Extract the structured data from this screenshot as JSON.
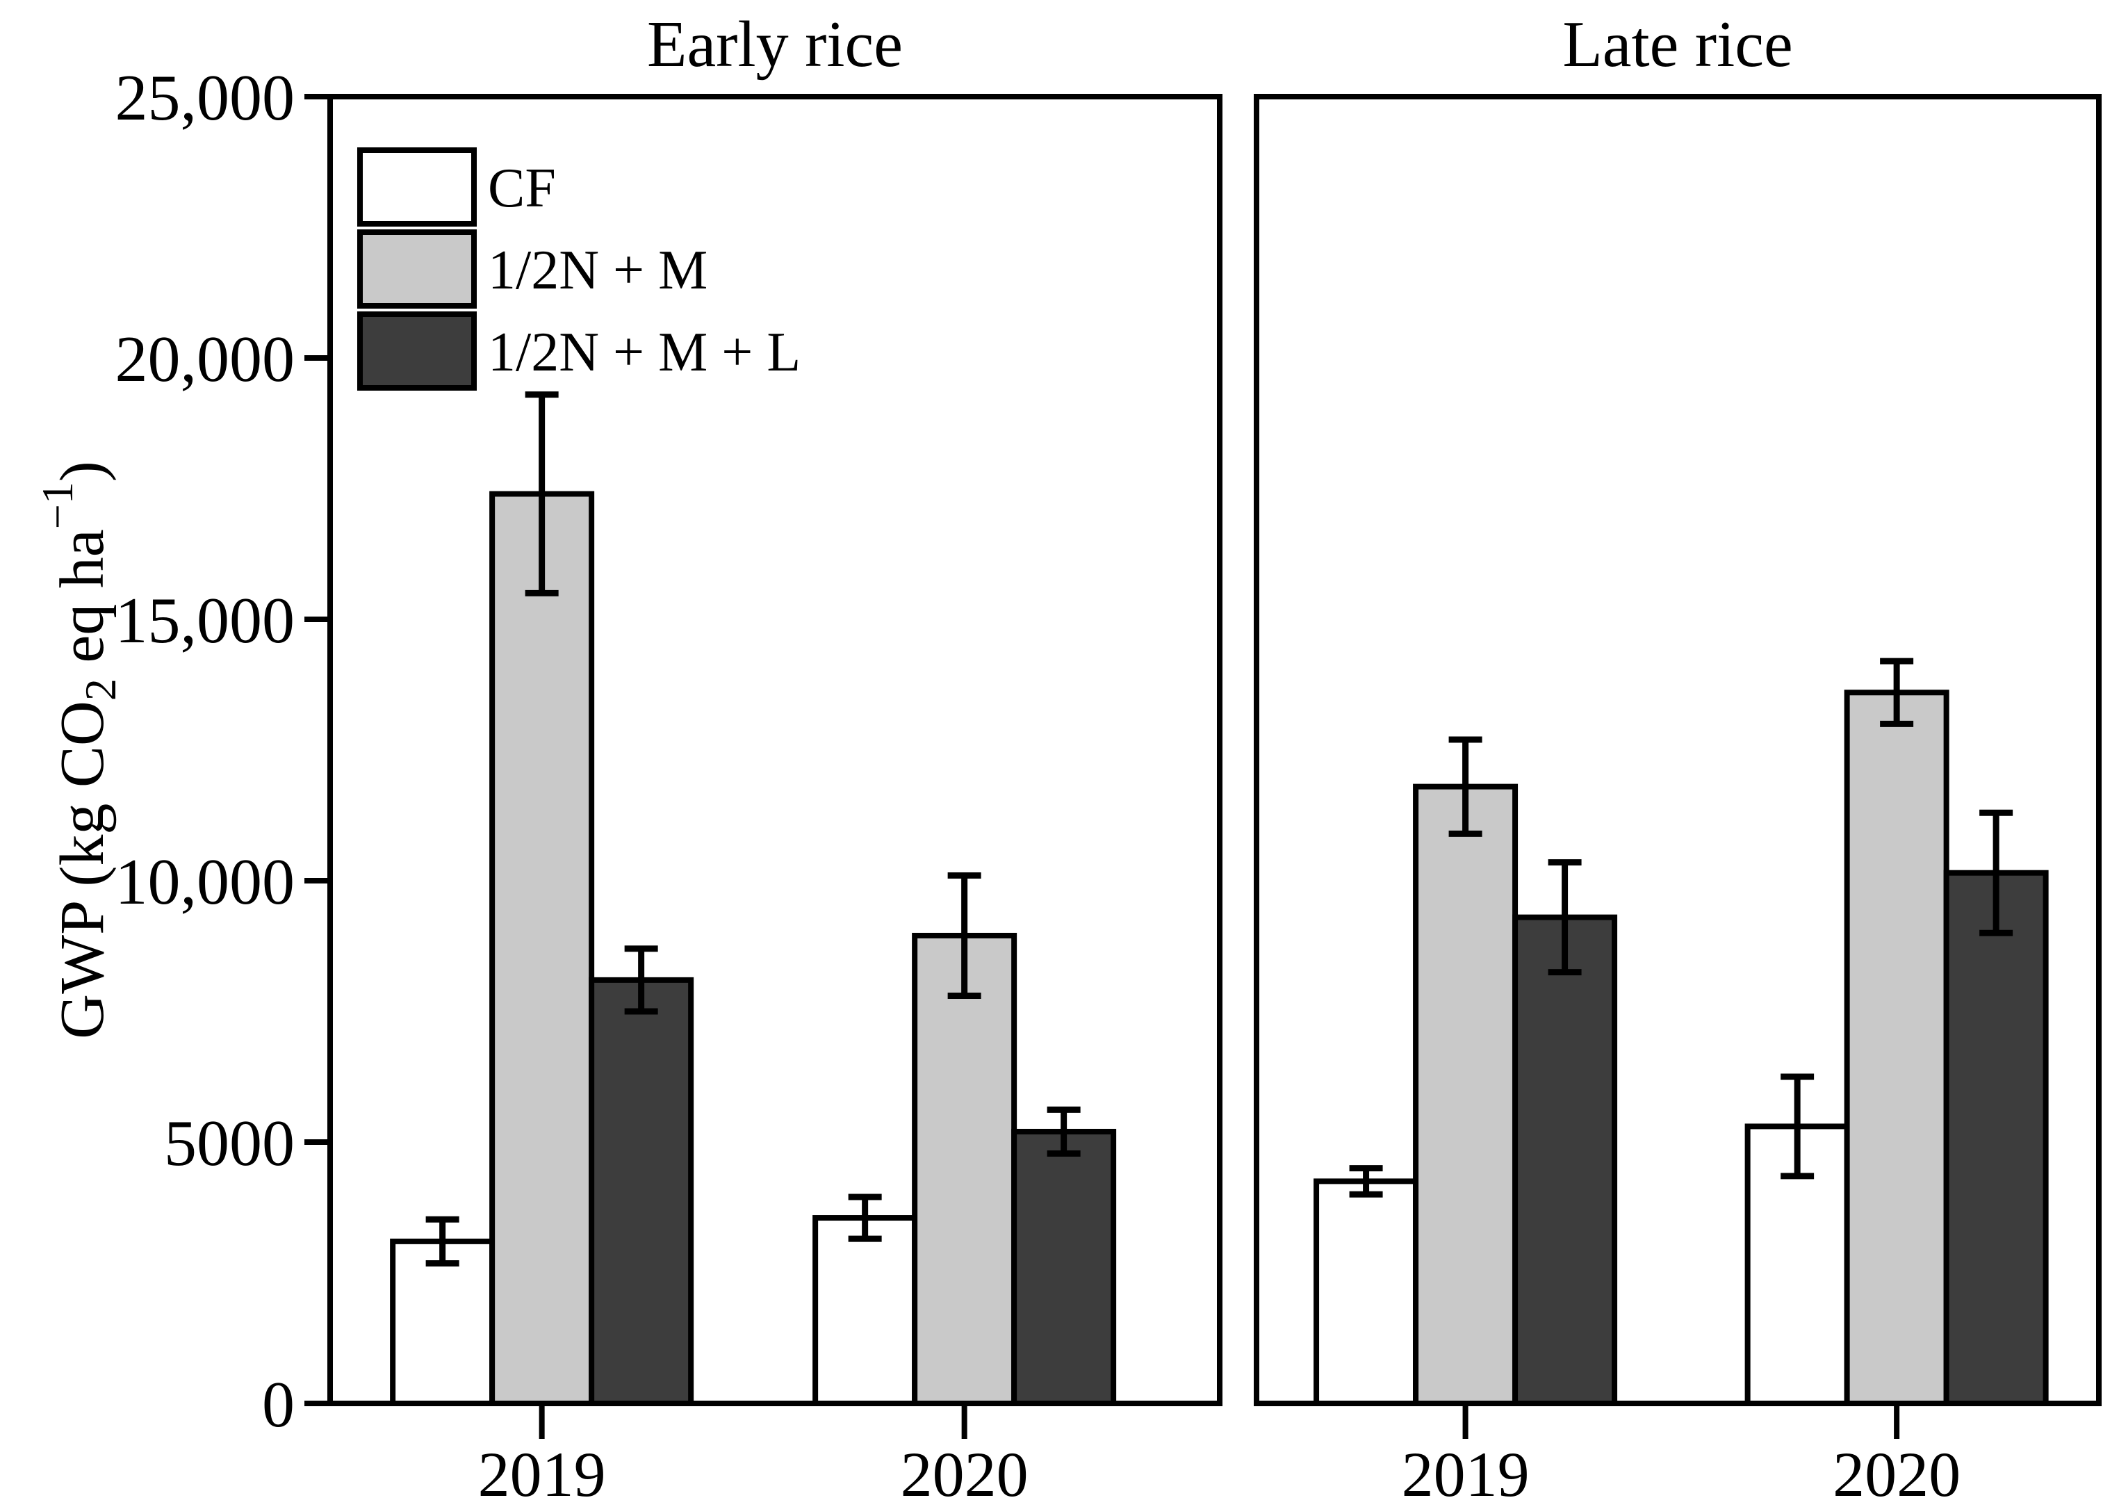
{
  "chart_data": {
    "type": "bar",
    "title": "",
    "unit": "kg CO2 eq ha-1",
    "ylabel_parts": {
      "prefix": "GWP (kg CO",
      "subscript": "2",
      "middle": " eq ha",
      "superscript": "−1",
      "suffix": ")"
    },
    "ylim": [
      0,
      25000
    ],
    "yticks": [
      {
        "value": 0,
        "label": "0"
      },
      {
        "value": 5000,
        "label": "5000"
      },
      {
        "value": 10000,
        "label": "10,000"
      },
      {
        "value": 15000,
        "label": "15,000"
      },
      {
        "value": 20000,
        "label": "20,000"
      },
      {
        "value": 25000,
        "label": "25,000"
      }
    ],
    "grid": false,
    "error_bars": true,
    "legend": {
      "position": "top-left-inside-first-panel",
      "items": [
        "CF",
        "1/2N + M",
        "1/2N + M + L"
      ]
    },
    "colors": {
      "cf_fill": "#ffffff",
      "half_n_m_fill": "#c9c9c9",
      "half_n_m_l_fill": "#3d3d3d",
      "stroke": "#000000",
      "background": "#ffffff"
    },
    "panels": [
      {
        "title": "Early rice",
        "categories": [
          "2019",
          "2020"
        ],
        "series": [
          {
            "name": "CF",
            "fill": "#ffffff",
            "values": [
              3100,
              3550
            ],
            "errors": [
              420,
              400
            ]
          },
          {
            "name": "1/2N + M",
            "fill": "#c9c9c9",
            "values": [
              17400,
              8950
            ],
            "errors": [
              1900,
              1150
            ]
          },
          {
            "name": "1/2N + M + L",
            "fill": "#3d3d3d",
            "values": [
              8100,
              5200
            ],
            "errors": [
              600,
              420
            ]
          }
        ]
      },
      {
        "title": "Late rice",
        "categories": [
          "2019",
          "2020"
        ],
        "series": [
          {
            "name": "CF",
            "fill": "#ffffff",
            "values": [
              4250,
              5300
            ],
            "errors": [
              250,
              950
            ]
          },
          {
            "name": "1/2N + M",
            "fill": "#c9c9c9",
            "values": [
              11800,
              13600
            ],
            "errors": [
              900,
              600
            ]
          },
          {
            "name": "1/2N + M + L",
            "fill": "#3d3d3d",
            "values": [
              9300,
              10150
            ],
            "errors": [
              1050,
              1150
            ]
          }
        ]
      }
    ]
  }
}
